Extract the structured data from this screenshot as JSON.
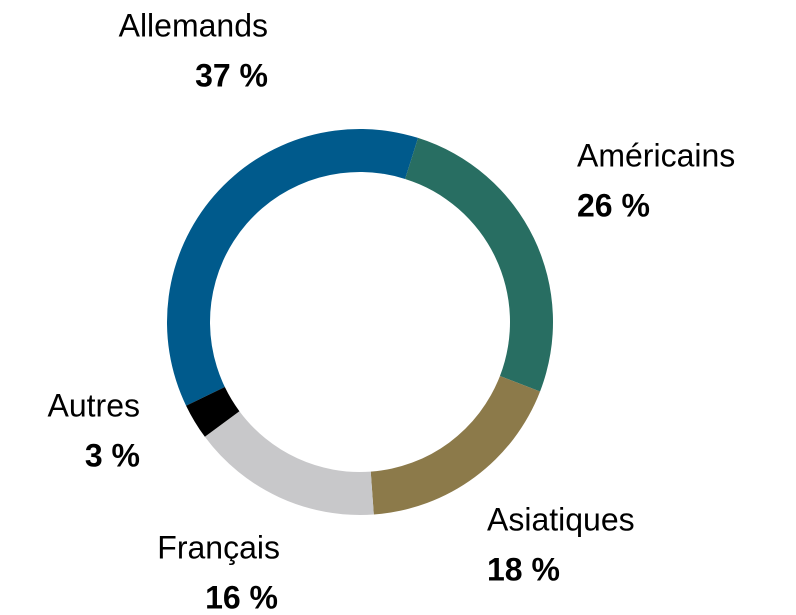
{
  "chart_data": {
    "type": "donut",
    "categories": [
      "Allemands",
      "Américains",
      "Asiatiques",
      "Français",
      "Autres"
    ],
    "values": [
      37,
      26,
      18,
      16,
      3
    ],
    "value_labels": [
      "37 %",
      "26 %",
      "18 %",
      "16 %",
      "3 %"
    ],
    "colors": [
      "#005a8c",
      "#286e62",
      "#8c7a4a",
      "#c8c8ca",
      "#000000"
    ]
  }
}
